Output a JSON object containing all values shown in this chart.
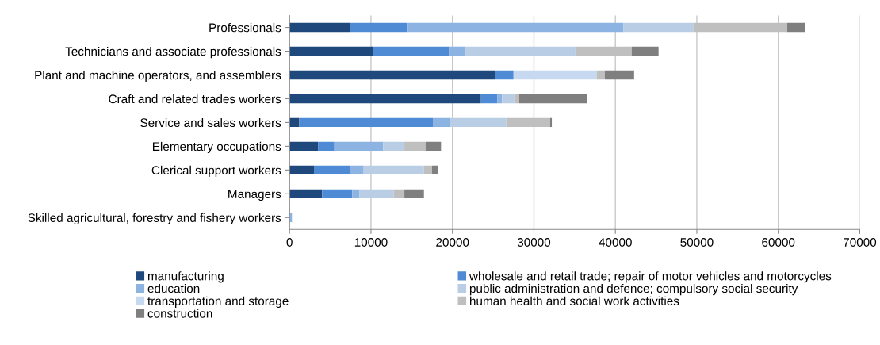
{
  "chart_data": {
    "type": "bar",
    "orientation": "horizontal",
    "stacked": true,
    "categories": [
      "Professionals",
      "Technicians and associate professionals",
      "Plant and machine operators, and assemblers",
      "Craft and related trades workers",
      "Service and sales workers",
      "Elementary occupations",
      "Clerical support workers",
      "Managers",
      "Skilled agricultural, forestry and fishery workers"
    ],
    "series": [
      {
        "name": "manufacturing",
        "color": "#1f497d",
        "values": [
          7400,
          10200,
          25200,
          23500,
          1200,
          3500,
          3000,
          4000,
          0
        ]
      },
      {
        "name": "wholesale and retail trade; repair of motor vehicles and motorcycles",
        "color": "#4f8bd4",
        "values": [
          7100,
          9400,
          2300,
          2000,
          16400,
          2000,
          4400,
          3700,
          0
        ]
      },
      {
        "name": "education",
        "color": "#8db3e2",
        "values": [
          26500,
          2000,
          0,
          600,
          2200,
          6000,
          1700,
          900,
          300
        ]
      },
      {
        "name": "public administration and defence; compulsory social security",
        "color": "#b9cde5",
        "values": [
          8600,
          13500,
          0,
          1500,
          6800,
          2600,
          7400,
          4200,
          0
        ]
      },
      {
        "name": "transportation and storage",
        "color": "#c6d9f1",
        "values": [
          0,
          0,
          10200,
          0,
          0,
          0,
          0,
          0,
          0
        ]
      },
      {
        "name": "human health and social work activities",
        "color": "#bfbfbf",
        "values": [
          11500,
          6900,
          1000,
          600,
          5400,
          2600,
          1000,
          1300,
          0
        ]
      },
      {
        "name": "construction",
        "color": "#7f7f7f",
        "values": [
          2200,
          3300,
          3600,
          8300,
          200,
          1900,
          700,
          2400,
          0
        ]
      }
    ],
    "xlim": [
      0,
      70000
    ],
    "xticks": [
      0,
      10000,
      20000,
      30000,
      40000,
      50000,
      60000,
      70000
    ],
    "grid": "x",
    "legend": "bottom"
  }
}
